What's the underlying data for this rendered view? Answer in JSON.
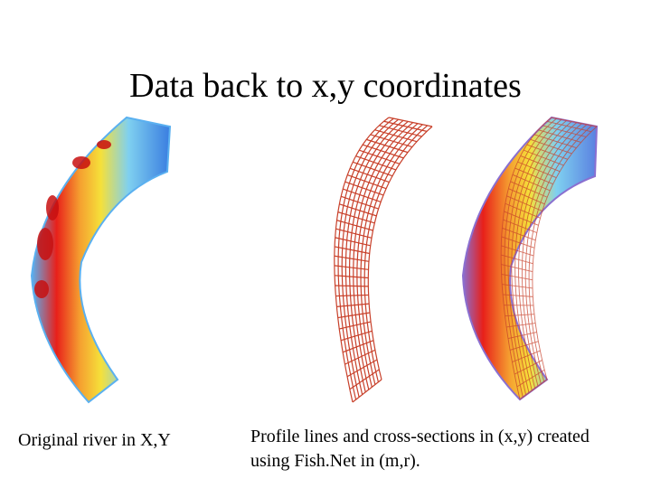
{
  "slide": {
    "title": "Data back to x,y coordinates"
  },
  "panels": [
    {
      "caption": "Original river in X,Y",
      "fill": "heatmap",
      "grid": false
    },
    {
      "caption": "",
      "fill": "none",
      "grid": true
    },
    {
      "caption": "Profile lines and cross-sections in (x,y) created using Fish.Net in (m,r).",
      "fill": "heatmap",
      "grid": true
    }
  ],
  "colors": {
    "background": "#ffffff",
    "grid_line": "#c8402a",
    "heat_low": "#3a7de0",
    "heat_mid": "#f5e03a",
    "heat_high": "#e8201a",
    "bank": "#5ab0f0",
    "outline_purple": "#8a6fd0"
  }
}
